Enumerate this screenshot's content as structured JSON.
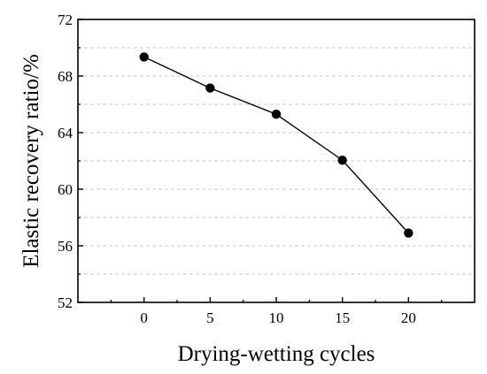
{
  "chart_data": {
    "type": "line",
    "title": "",
    "xlabel": "Drying-wetting cycles",
    "ylabel": "Elastic recovery ratio/%",
    "x": [
      0,
      5,
      10,
      15,
      20
    ],
    "series": [
      {
        "values": [
          69.35,
          67.15,
          65.3,
          62.05,
          56.9
        ]
      }
    ],
    "xlim": [
      -5,
      25
    ],
    "ylim": [
      52,
      72
    ],
    "xticks": [
      "0",
      "5",
      "10",
      "15",
      "20"
    ],
    "yticks": [
      "52",
      "56",
      "60",
      "64",
      "68",
      "72"
    ],
    "xtick_values": [
      0,
      5,
      10,
      15,
      20
    ],
    "ytick_values": [
      52,
      56,
      60,
      64,
      68,
      72
    ],
    "grid": true,
    "grid_style": "dashed horizontal",
    "marker": "filled circle",
    "colors": {
      "line": "#000000",
      "marker": "#000000",
      "grid": "#c8c8c8",
      "axes": "#000000"
    }
  }
}
